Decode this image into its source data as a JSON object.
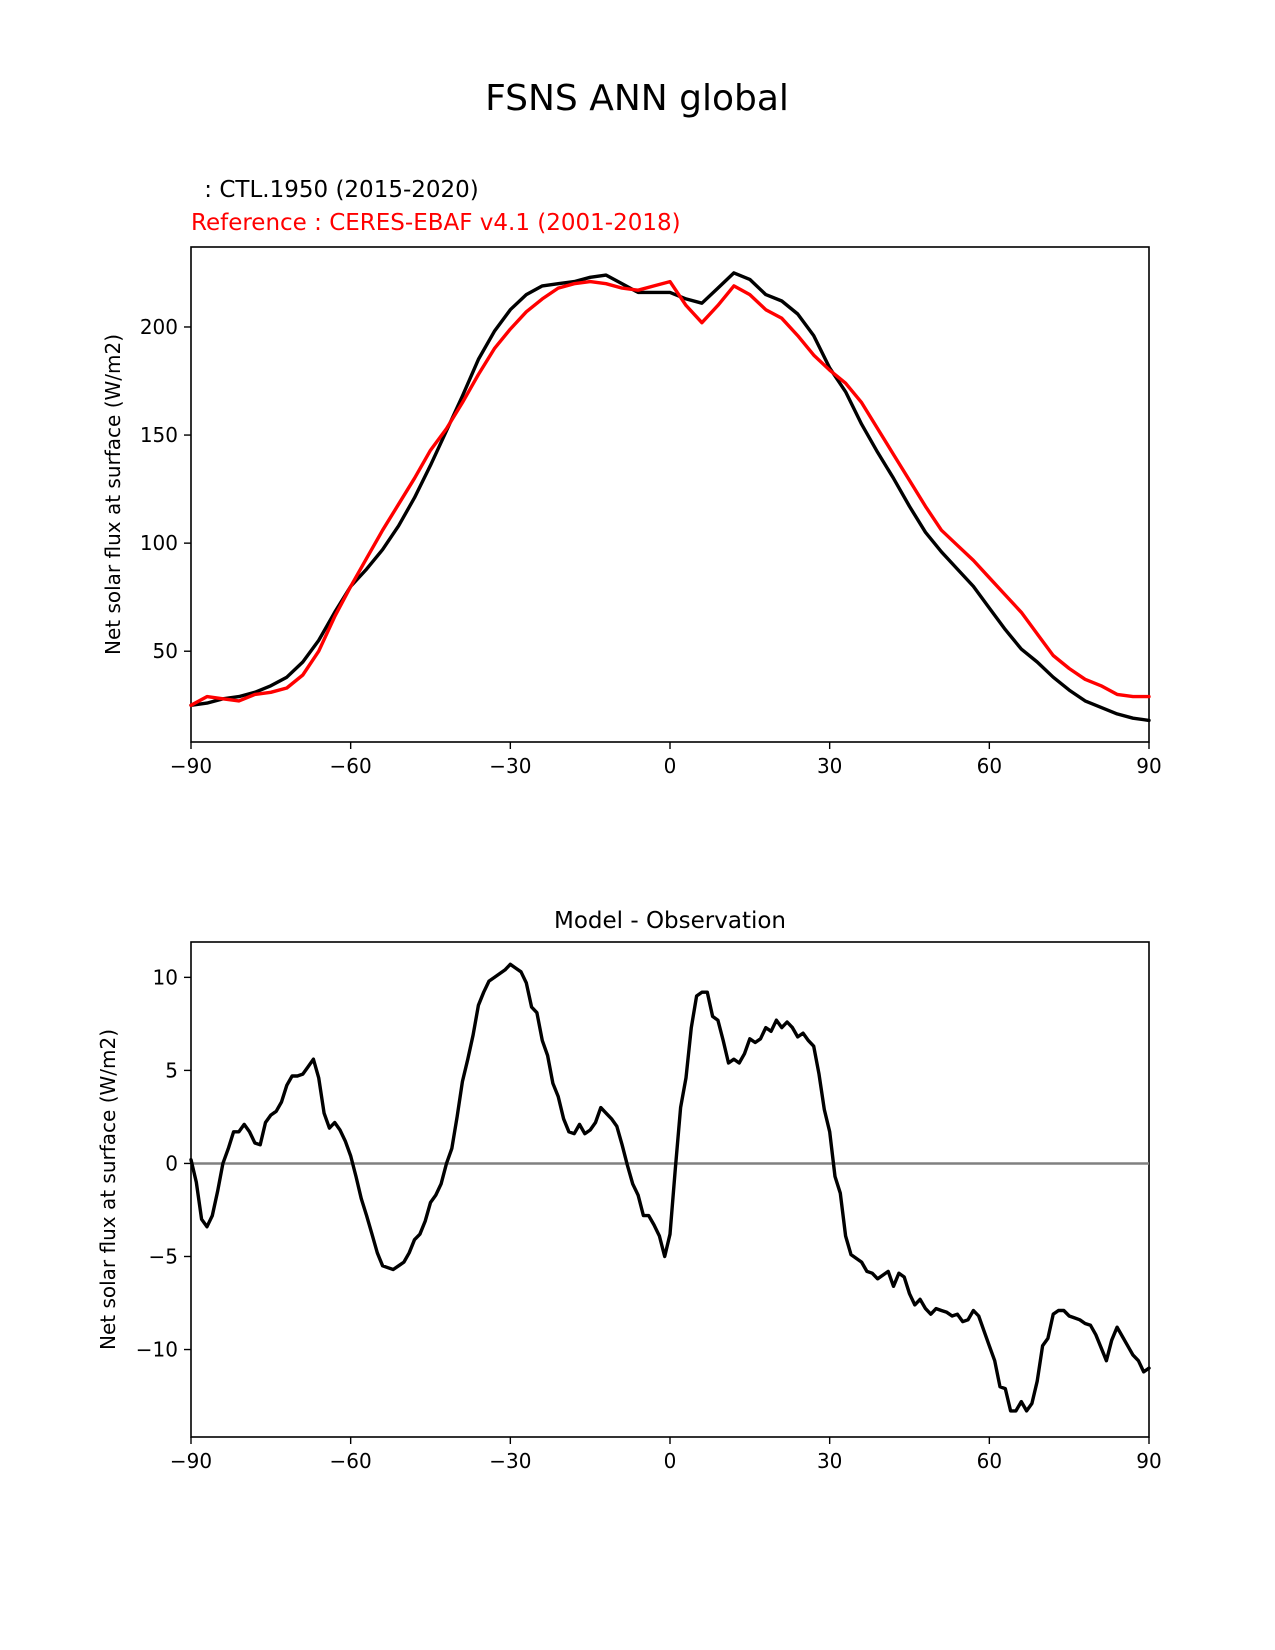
{
  "figure": {
    "title": "FSNS ANN global"
  },
  "chart_data": [
    {
      "type": "line",
      "name": "top-panel",
      "legend_test": " : CTL.1950 (2015-2020)",
      "legend_ref": "Reference : CERES-EBAF v4.1 (2001-2018)",
      "ylabel": "Net solar flux at surface (W/m2)",
      "xlim": [
        -90,
        90
      ],
      "ylim": [
        8,
        237
      ],
      "xticks": [
        -90,
        -60,
        -30,
        0,
        30,
        60,
        90
      ],
      "xtick_labels": [
        "−90",
        "−60",
        "−30",
        "0",
        "30",
        "60",
        "90"
      ],
      "yticks": [
        50,
        100,
        150,
        200
      ],
      "ytick_labels": [
        "50",
        "100",
        "150",
        "200"
      ],
      "series": [
        {
          "name": "CTL.1950 (2015-2020)",
          "color": "#000000",
          "x": [
            -90,
            -87,
            -84,
            -81,
            -78,
            -75,
            -72,
            -69,
            -66,
            -63,
            -60,
            -57,
            -54,
            -51,
            -48,
            -45,
            -42,
            -39,
            -36,
            -33,
            -30,
            -27,
            -24,
            -21,
            -18,
            -15,
            -12,
            -9,
            -6,
            -3,
            0,
            3,
            6,
            9,
            12,
            15,
            18,
            21,
            24,
            27,
            30,
            33,
            36,
            39,
            42,
            45,
            48,
            51,
            54,
            57,
            60,
            63,
            66,
            69,
            72,
            75,
            78,
            81,
            84,
            87,
            90
          ],
          "y": [
            25,
            26,
            28,
            29,
            31,
            34,
            38,
            45,
            55,
            68,
            80,
            88,
            97,
            108,
            121,
            136,
            152,
            168,
            185,
            198,
            208,
            215,
            219,
            220,
            221,
            223,
            224,
            220,
            216,
            216,
            216,
            213,
            211,
            218,
            225,
            222,
            215,
            212,
            206,
            196,
            181,
            170,
            155,
            142,
            130,
            117,
            105,
            96,
            88,
            80,
            70,
            60,
            51,
            45,
            38,
            32,
            27,
            24,
            21,
            19,
            18
          ]
        },
        {
          "name": "CERES-EBAF v4.1 (2001-2018)",
          "color": "#ff0000",
          "x": [
            -90,
            -87,
            -84,
            -81,
            -78,
            -75,
            -72,
            -69,
            -66,
            -63,
            -60,
            -57,
            -54,
            -51,
            -48,
            -45,
            -42,
            -39,
            -36,
            -33,
            -30,
            -27,
            -24,
            -21,
            -18,
            -15,
            -12,
            -9,
            -6,
            -3,
            0,
            3,
            6,
            9,
            12,
            15,
            18,
            21,
            24,
            27,
            30,
            33,
            36,
            39,
            42,
            45,
            48,
            51,
            54,
            57,
            60,
            63,
            66,
            69,
            72,
            75,
            78,
            81,
            84,
            87,
            90
          ],
          "y": [
            25,
            29,
            28,
            27,
            30,
            31,
            33,
            39,
            50,
            66,
            80,
            93,
            106,
            118,
            130,
            143,
            153,
            165,
            178,
            190,
            199,
            207,
            213,
            218,
            220,
            221,
            220,
            218,
            217,
            219,
            221,
            210,
            202,
            210,
            219,
            215,
            208,
            204,
            196,
            187,
            180,
            174,
            165,
            153,
            141,
            129,
            117,
            106,
            99,
            92,
            84,
            76,
            68,
            58,
            48,
            42,
            37,
            34,
            30,
            29,
            29
          ]
        }
      ]
    },
    {
      "type": "line",
      "name": "bottom-panel",
      "title": "Model - Observation",
      "ylabel": "Net solar flux at surface (W/m2)",
      "xlim": [
        -90,
        90
      ],
      "ylim": [
        -14.7,
        11.9
      ],
      "zero_line": {
        "value": 0,
        "color": "#808080"
      },
      "xticks": [
        -90,
        -60,
        -30,
        0,
        30,
        60,
        90
      ],
      "xtick_labels": [
        "−90",
        "−60",
        "−30",
        "0",
        "30",
        "60",
        "90"
      ],
      "yticks": [
        -10,
        -5,
        0,
        5,
        10
      ],
      "ytick_labels": [
        "−10",
        "−5",
        "0",
        "5",
        "10"
      ],
      "series": [
        {
          "name": "Model - Observation",
          "color": "#000000",
          "x": [
            -90,
            -89,
            -88,
            -87,
            -86,
            -85,
            -84,
            -83,
            -82,
            -81,
            -80,
            -79,
            -78,
            -77,
            -76,
            -75,
            -74,
            -73,
            -72,
            -71,
            -70,
            -69,
            -68,
            -67,
            -66,
            -65,
            -64,
            -63,
            -62,
            -61,
            -60,
            -59,
            -58,
            -57,
            -56,
            -55,
            -54,
            -53,
            -52,
            -51,
            -50,
            -49,
            -48,
            -47,
            -46,
            -45,
            -44,
            -43,
            -42,
            -41,
            -40,
            -39,
            -38,
            -37,
            -36,
            -35,
            -34,
            -33,
            -32,
            -31,
            -30,
            -29,
            -28,
            -27,
            -26,
            -25,
            -24,
            -23,
            -22,
            -21,
            -20,
            -19,
            -18,
            -17,
            -16,
            -15,
            -14,
            -13,
            -12,
            -11,
            -10,
            -9,
            -8,
            -7,
            -6,
            -5,
            -4,
            -3,
            -2,
            -1,
            0,
            1,
            2,
            3,
            4,
            5,
            6,
            7,
            8,
            9,
            10,
            11,
            12,
            13,
            14,
            15,
            16,
            17,
            18,
            19,
            20,
            21,
            22,
            23,
            24,
            25,
            26,
            27,
            28,
            29,
            30,
            31,
            32,
            33,
            34,
            35,
            36,
            37,
            38,
            39,
            40,
            41,
            42,
            43,
            44,
            45,
            46,
            47,
            48,
            49,
            50,
            51,
            52,
            53,
            54,
            55,
            56,
            57,
            58,
            59,
            60,
            61,
            62,
            63,
            64,
            65,
            66,
            67,
            68,
            69,
            70,
            71,
            72,
            73,
            74,
            75,
            76,
            77,
            78,
            79,
            80,
            81,
            82,
            83,
            84,
            85,
            86,
            87,
            88,
            89,
            90
          ],
          "y": [
            0.2,
            -1.0,
            -3.0,
            -3.4,
            -2.8,
            -1.5,
            0.0,
            0.8,
            1.7,
            1.7,
            2.1,
            1.7,
            1.1,
            1.0,
            2.2,
            2.6,
            2.8,
            3.3,
            4.2,
            4.7,
            4.7,
            4.8,
            5.2,
            5.6,
            4.6,
            2.7,
            1.9,
            2.2,
            1.8,
            1.2,
            0.4,
            -0.7,
            -1.9,
            -2.8,
            -3.8,
            -4.8,
            -5.5,
            -5.6,
            -5.7,
            -5.5,
            -5.3,
            -4.8,
            -4.1,
            -3.8,
            -3.1,
            -2.1,
            -1.7,
            -1.1,
            0.0,
            0.8,
            2.5,
            4.4,
            5.6,
            6.9,
            8.5,
            9.2,
            9.8,
            10.0,
            10.2,
            10.4,
            10.7,
            10.5,
            10.3,
            9.7,
            8.4,
            8.1,
            6.6,
            5.8,
            4.3,
            3.6,
            2.4,
            1.7,
            1.6,
            2.1,
            1.6,
            1.8,
            2.2,
            3.0,
            2.7,
            2.4,
            2.0,
            1.0,
            -0.1,
            -1.1,
            -1.7,
            -2.8,
            -2.8,
            -3.3,
            -3.9,
            -5.0,
            -3.8,
            -0.3,
            3.0,
            4.6,
            7.3,
            9.0,
            9.2,
            9.2,
            7.9,
            7.7,
            6.6,
            5.4,
            5.6,
            5.4,
            5.9,
            6.7,
            6.5,
            6.7,
            7.3,
            7.1,
            7.7,
            7.3,
            7.6,
            7.3,
            6.8,
            7.0,
            6.6,
            6.3,
            4.8,
            2.9,
            1.7,
            -0.7,
            -1.6,
            -3.9,
            -4.9,
            -5.1,
            -5.3,
            -5.8,
            -5.9,
            -6.2,
            -6.0,
            -5.8,
            -6.6,
            -5.9,
            -6.1,
            -7.0,
            -7.6,
            -7.3,
            -7.8,
            -8.1,
            -7.8,
            -7.9,
            -8.0,
            -8.2,
            -8.1,
            -8.5,
            -8.4,
            -7.9,
            -8.2,
            -9.0,
            -9.8,
            -10.6,
            -12.0,
            -12.1,
            -13.3,
            -13.3,
            -12.8,
            -13.3,
            -12.9,
            -11.7,
            -9.8,
            -9.4,
            -8.1,
            -7.9,
            -7.9,
            -8.2,
            -8.3,
            -8.4,
            -8.6,
            -8.7,
            -9.2,
            -9.9,
            -10.6,
            -9.5,
            -8.8,
            -9.3,
            -9.8,
            -10.3,
            -10.6,
            -11.2,
            -11.0
          ]
        }
      ]
    }
  ]
}
